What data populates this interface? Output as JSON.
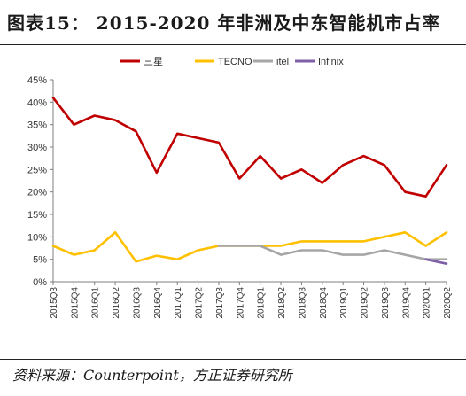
{
  "title": "图表15：  2015-2020 年非洲及中东智能机市占率",
  "source": "资料来源：Counterpoint，方正证券研究所",
  "chart_data": {
    "type": "line",
    "categories": [
      "2015Q3",
      "2015Q4",
      "2016Q1",
      "2016Q2",
      "2016Q3",
      "2016Q4",
      "2017Q1",
      "2017Q2",
      "2017Q3",
      "2017Q4",
      "2018Q1",
      "2018Q2",
      "2018Q3",
      "2018Q4",
      "2019Q1",
      "2019Q2",
      "2019Q3",
      "2019Q4",
      "2020Q1",
      "2020Q2"
    ],
    "y_ticks": [
      "0%",
      "5%",
      "10%",
      "15%",
      "20%",
      "25%",
      "30%",
      "35%",
      "40%",
      "45%"
    ],
    "ylim": [
      0,
      45
    ],
    "legend_position": "top",
    "grid": false,
    "series": [
      {
        "name": "三星",
        "color": "#c00000",
        "values": [
          41,
          35,
          37,
          36,
          33.5,
          24.3,
          33,
          32,
          31,
          23,
          28,
          23,
          25,
          22,
          26,
          28,
          26,
          20,
          19,
          26
        ]
      },
      {
        "name": "TECNO",
        "color": "#ffc000",
        "values": [
          8,
          6,
          7,
          11,
          4.5,
          5.8,
          5,
          7,
          8,
          8,
          8,
          8,
          9,
          9,
          9,
          9,
          10,
          11,
          8,
          11
        ]
      },
      {
        "name": "itel",
        "color": "#a6a6a6",
        "values": [
          null,
          null,
          null,
          null,
          null,
          null,
          null,
          null,
          8,
          8,
          8,
          6,
          7,
          7,
          6,
          6,
          7,
          6,
          5,
          5
        ]
      },
      {
        "name": "Infinix",
        "color": "#7f5fa8",
        "values": [
          null,
          null,
          null,
          null,
          null,
          null,
          null,
          null,
          null,
          null,
          null,
          null,
          null,
          null,
          null,
          null,
          null,
          null,
          5,
          4
        ]
      }
    ]
  }
}
